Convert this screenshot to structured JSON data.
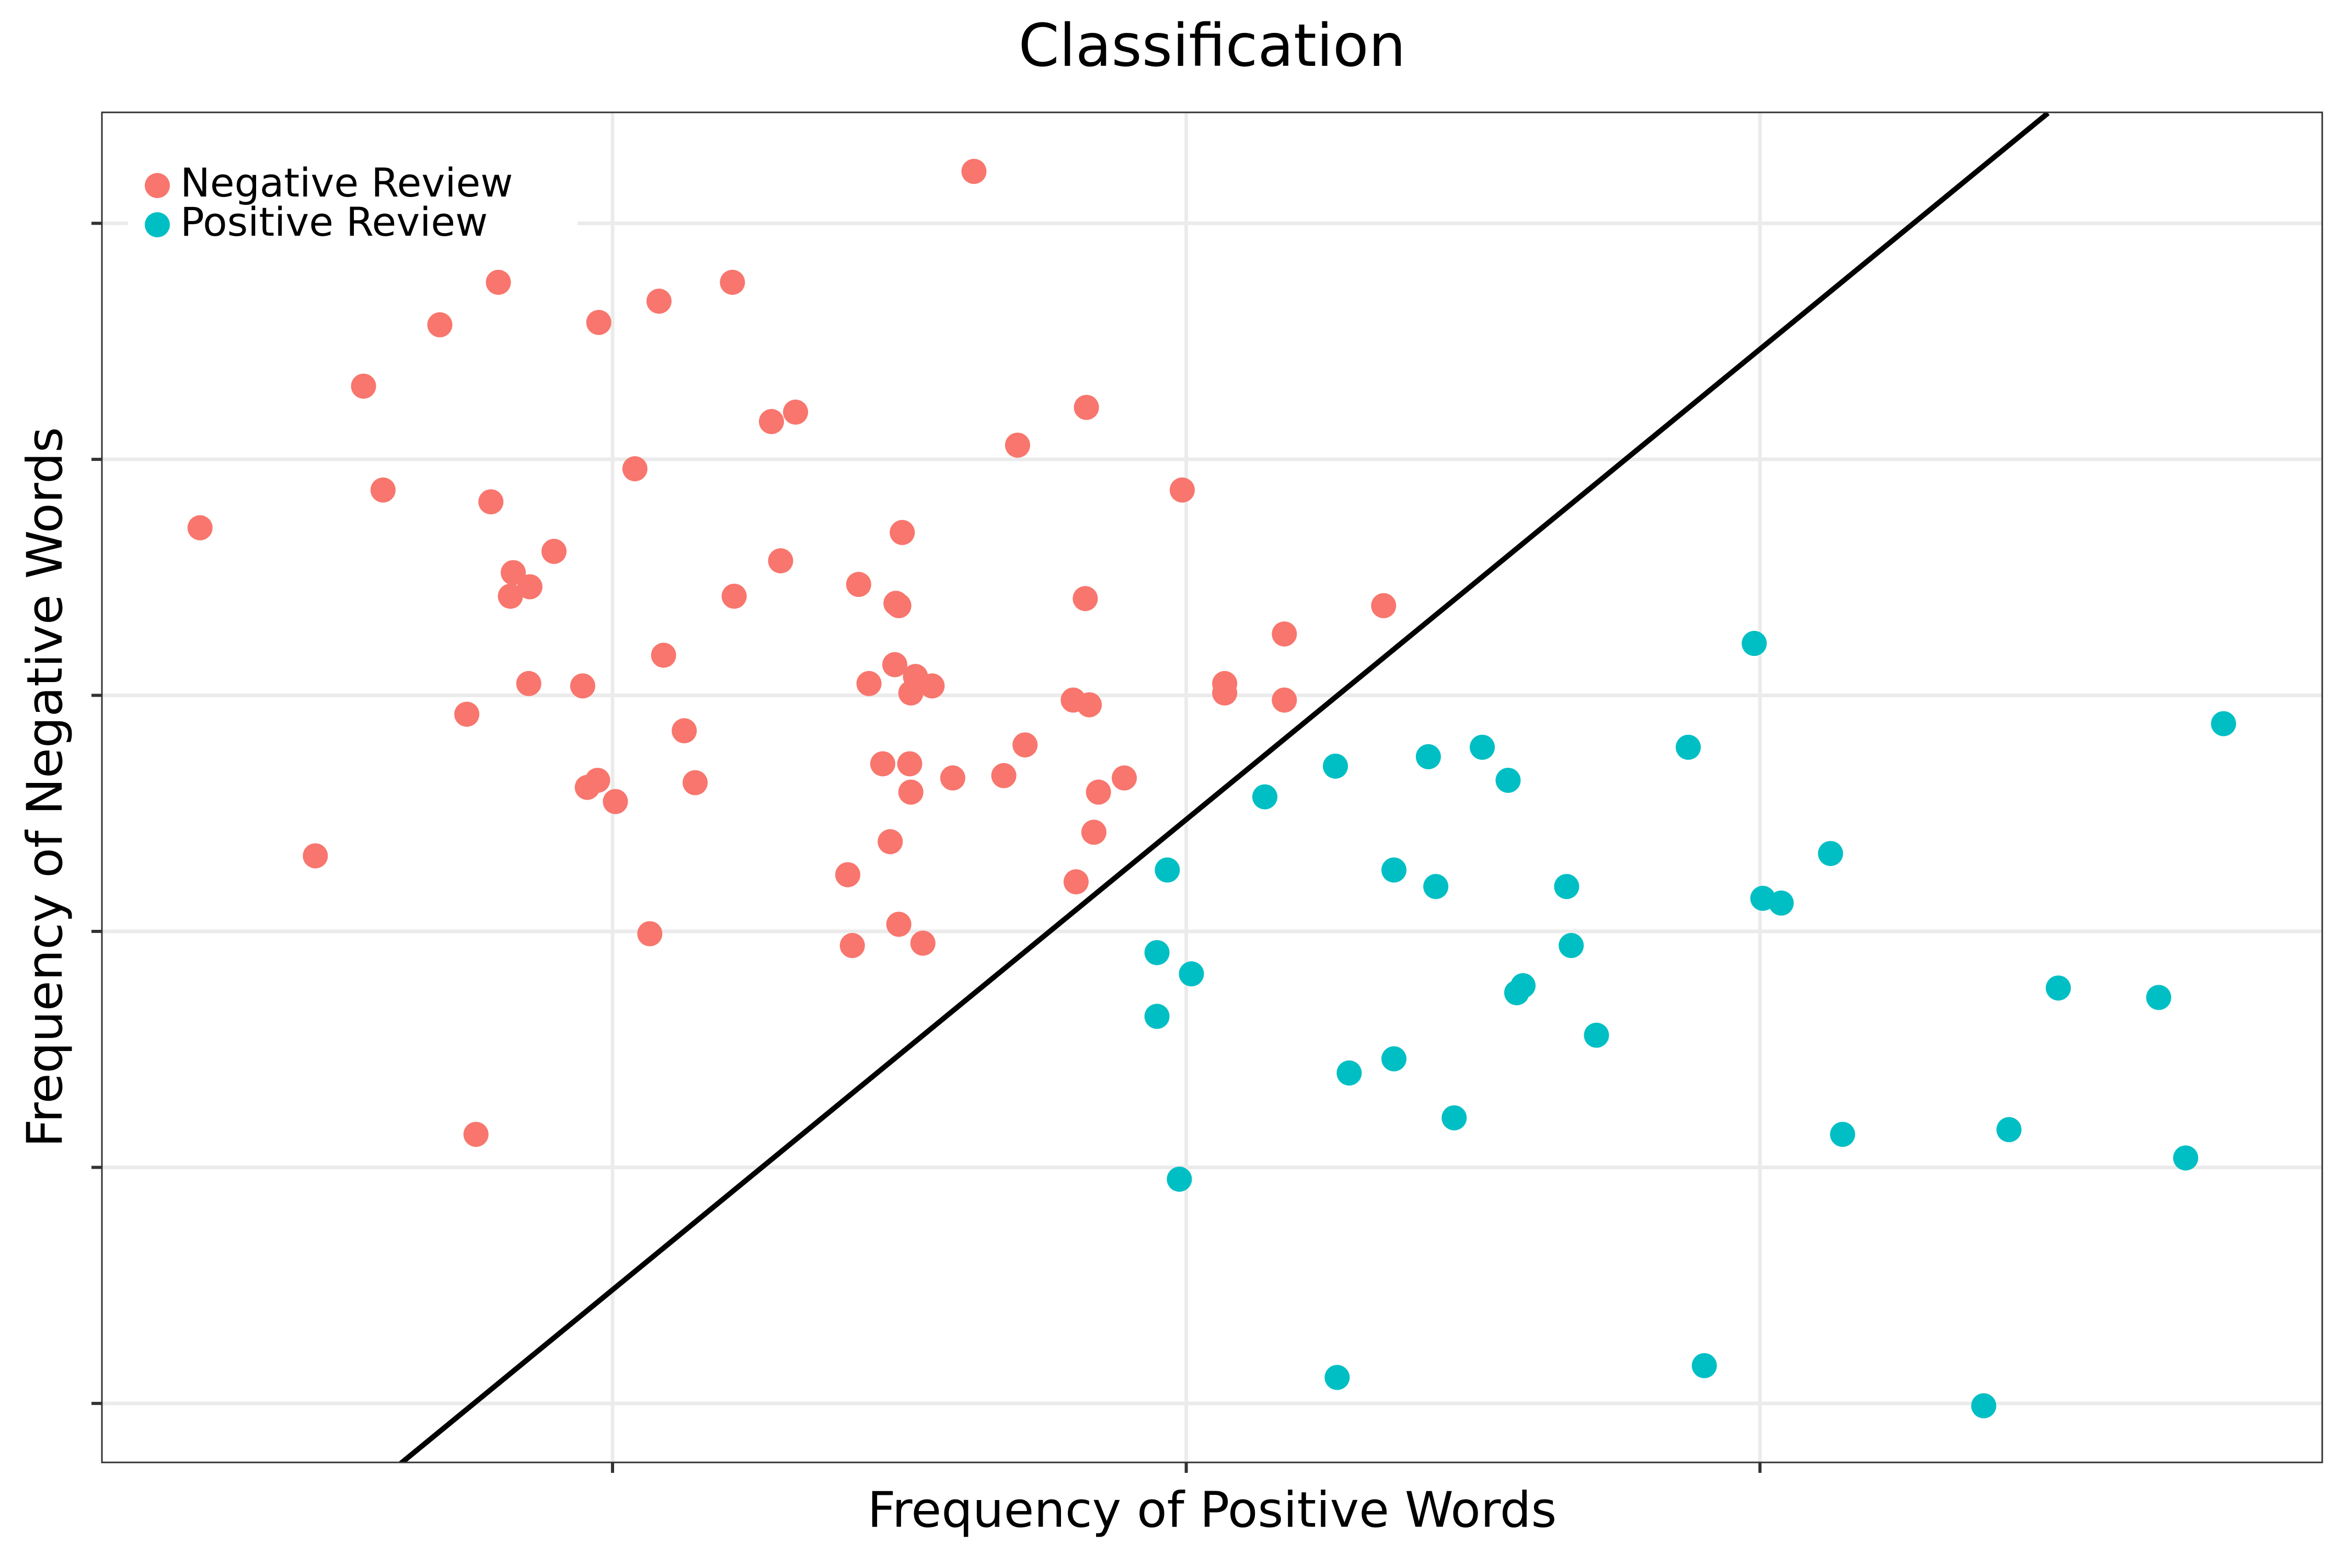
{
  "chart_data": {
    "type": "scatter",
    "title": "Classification",
    "x_label": "Frequency of Positive Words",
    "y_label": "Frequency of Negative Words",
    "xlim": [
      0.11,
      3.98
    ],
    "ylim": [
      -0.25,
      5.47
    ],
    "xticks": [
      1,
      2,
      3
    ],
    "yticks": [
      0,
      1,
      2,
      3,
      4,
      5
    ],
    "grid": true,
    "legend": "top-left",
    "series": [
      {
        "name": "Negative Review",
        "color": "#F8766D",
        "x": [
          1.63,
          0.281,
          0.566,
          0.6,
          0.699,
          0.801,
          0.976,
          1.081,
          1.209,
          1.277,
          1.319,
          1.826,
          1.706,
          1.993,
          1.039,
          0.788,
          0.898,
          0.827,
          0.856,
          0.822,
          1.293,
          1.505,
          1.429,
          1.494,
          1.499,
          1.212,
          1.824,
          1.089,
          2.171,
          2.344,
          0.854,
          0.948,
          1.492,
          1.447,
          1.528,
          1.52,
          1.557,
          1.803,
          1.831,
          2.067,
          2.067,
          2.171,
          0.746,
          1.125,
          1.719,
          1.471,
          1.518,
          1.682,
          1.593,
          1.892,
          0.974,
          0.956,
          1.144,
          1.52,
          1.847,
          1.005,
          1.839,
          1.484,
          0.482,
          1.41,
          1.808,
          1.499,
          1.065,
          1.418,
          1.541,
          0.762
        ],
        "values": [
          5.22,
          3.71,
          4.31,
          3.87,
          4.57,
          4.75,
          4.58,
          4.67,
          4.75,
          4.16,
          4.2,
          4.22,
          4.06,
          3.87,
          3.96,
          3.82,
          3.61,
          3.52,
          3.46,
          3.42,
          3.57,
          3.69,
          3.47,
          3.39,
          3.38,
          3.42,
          3.41,
          3.17,
          3.26,
          3.38,
          3.05,
          3.04,
          3.13,
          3.05,
          3.08,
          3.01,
          3.04,
          2.98,
          2.96,
          3.05,
          3.01,
          2.98,
          2.92,
          2.85,
          2.79,
          2.71,
          2.71,
          2.66,
          2.65,
          2.65,
          2.64,
          2.61,
          2.63,
          2.59,
          2.59,
          2.55,
          2.42,
          2.38,
          2.32,
          2.24,
          2.21,
          2.03,
          1.99,
          1.94,
          1.95,
          1.14
        ]
      },
      {
        "name": "Positive Review",
        "color": "#00BFC4",
        "x": [
          2.99,
          3.808,
          2.516,
          2.875,
          2.422,
          2.26,
          2.561,
          2.137,
          3.123,
          1.967,
          2.362,
          2.435,
          2.663,
          3.005,
          3.037,
          2.671,
          1.949,
          2.009,
          3.52,
          2.587,
          2.576,
          3.695,
          1.949,
          2.715,
          2.362,
          2.284,
          2.467,
          3.434,
          3.144,
          3.742,
          1.988,
          2.903,
          2.263,
          3.39
        ],
        "values": [
          3.22,
          2.88,
          2.78,
          2.78,
          2.74,
          2.7,
          2.64,
          2.57,
          2.33,
          2.26,
          2.26,
          2.19,
          2.19,
          2.14,
          2.12,
          1.94,
          1.91,
          1.82,
          1.76,
          1.77,
          1.74,
          1.72,
          1.64,
          1.56,
          1.46,
          1.4,
          1.21,
          1.16,
          1.14,
          1.04,
          0.95,
          0.16,
          0.11,
          -0.01
        ]
      }
    ],
    "boundary": {
      "color": "#000000",
      "x": [
        0.631,
        3.502
      ],
      "y": [
        -0.254,
        5.467
      ]
    }
  }
}
